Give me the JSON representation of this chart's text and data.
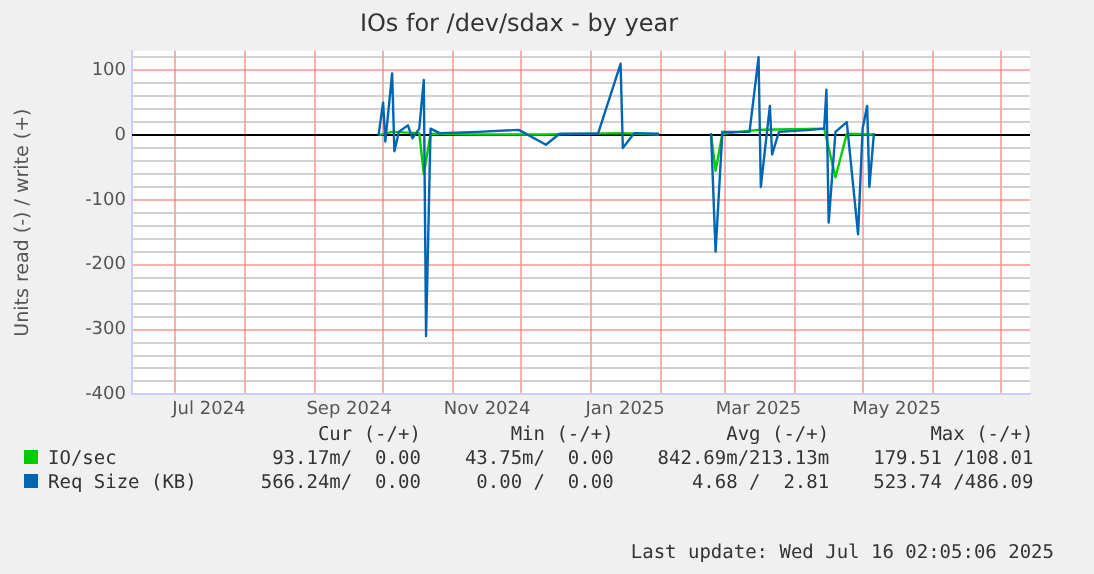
{
  "chart_data": {
    "type": "line",
    "title": "IOs for /dev/sdax - by year",
    "ylabel": "Units read (-) / write (+)",
    "xlim": [
      "2024-06-12",
      "2025-07-14"
    ],
    "xticks": [
      {
        "value": "2024-07-01",
        "label": null
      },
      {
        "value": "2024-07-16",
        "label": "Jul 2024"
      },
      {
        "value": "2024-08-01",
        "label": null
      },
      {
        "value": "2024-09-01",
        "label": null
      },
      {
        "value": "2024-09-16",
        "label": "Sep 2024"
      },
      {
        "value": "2024-10-01",
        "label": null
      },
      {
        "value": "2024-11-01",
        "label": null
      },
      {
        "value": "2024-11-16",
        "label": "Nov 2024"
      },
      {
        "value": "2024-12-01",
        "label": null
      },
      {
        "value": "2025-01-01",
        "label": null
      },
      {
        "value": "2025-01-16",
        "label": "Jan 2025"
      },
      {
        "value": "2025-02-01",
        "label": null
      },
      {
        "value": "2025-03-01",
        "label": null
      },
      {
        "value": "2025-03-16",
        "label": "Mar 2025"
      },
      {
        "value": "2025-04-01",
        "label": null
      },
      {
        "value": "2025-05-01",
        "label": null
      },
      {
        "value": "2025-05-16",
        "label": "May 2025"
      },
      {
        "value": "2025-06-01",
        "label": null
      },
      {
        "value": "2025-07-01",
        "label": null
      }
    ],
    "ylim": [
      -400,
      130
    ],
    "yticks": [
      -400,
      {
        "value": -380,
        "label": null
      },
      {
        "value": -360,
        "label": null
      },
      {
        "value": -340,
        "label": null
      },
      {
        "value": -320,
        "label": null
      },
      -300,
      {
        "value": -280,
        "label": null
      },
      {
        "value": -260,
        "label": null
      },
      {
        "value": -240,
        "label": null
      },
      {
        "value": -220,
        "label": null
      },
      -200,
      {
        "value": -180,
        "label": null
      },
      {
        "value": -160,
        "label": null
      },
      {
        "value": -140,
        "label": null
      },
      {
        "value": -120,
        "label": null
      },
      -100,
      {
        "value": -80,
        "label": null
      },
      {
        "value": -60,
        "label": null
      },
      {
        "value": -40,
        "label": null
      },
      {
        "value": -20,
        "label": null
      },
      0,
      {
        "value": 20,
        "label": null
      },
      {
        "value": 40,
        "label": null
      },
      {
        "value": 60,
        "label": null
      },
      {
        "value": 80,
        "label": null
      },
      100,
      {
        "value": 120,
        "label": null
      }
    ],
    "grid": true,
    "legend": "bottom left",
    "marker": "none",
    "line_style": "solid",
    "ref_lines": [
      {
        "axis": "y",
        "value": 0,
        "color": "#000000"
      }
    ],
    "series": [
      {
        "name": "Req Size (KB)",
        "color": "#0066b3",
        "x": [
          "2024-09-29",
          "2024-10-01",
          "2024-10-02",
          "2024-10-05",
          "2024-10-06",
          "2024-10-08",
          "2024-10-12",
          "2024-10-14",
          "2024-10-17",
          "2024-10-19",
          "2024-10-20",
          "2024-10-22",
          "2024-10-26",
          "2024-11-12",
          "2024-11-30",
          "2024-12-12",
          "2024-12-18",
          "2025-01-04",
          "2025-01-14",
          "2025-01-15",
          "2025-01-20",
          "2025-01-31",
          "2025-02-10",
          "2025-02-23",
          "2025-02-25",
          "2025-02-28",
          "2025-03-12",
          "2025-03-16",
          "2025-03-17",
          "2025-03-21",
          "2025-03-22",
          "2025-03-25",
          "2025-04-08",
          "2025-04-14",
          "2025-04-15",
          "2025-04-16",
          "2025-04-19",
          "2025-04-24",
          "2025-04-29",
          "2025-05-01",
          "2025-05-03",
          "2025-05-04",
          "2025-05-06"
        ],
        "values": [
          0,
          50,
          -10,
          95,
          -25,
          5,
          15,
          -5,
          10,
          85,
          -310,
          10,
          3,
          5,
          8,
          -15,
          2,
          2,
          110,
          -20,
          3,
          2,
          null,
          3,
          -180,
          5,
          5,
          120,
          -80,
          45,
          -30,
          5,
          8,
          10,
          70,
          -135,
          5,
          20,
          -153,
          10,
          45,
          -80,
          3
        ]
      },
      {
        "name": "IO/sec",
        "color": "#00cc00",
        "x": [
          "2024-09-29",
          "2024-10-05",
          "2024-10-17",
          "2024-10-19",
          "2024-10-22",
          "2024-11-12",
          "2024-12-12",
          "2025-01-14",
          "2025-01-31",
          "2025-02-10",
          "2025-02-23",
          "2025-02-25",
          "2025-02-28",
          "2025-03-16",
          "2025-04-14",
          "2025-04-19",
          "2025-04-24",
          "2025-05-06"
        ],
        "values": [
          0,
          5,
          3,
          -60,
          2,
          1,
          1,
          3,
          1,
          null,
          1,
          -55,
          2,
          8,
          10,
          -65,
          2,
          1
        ]
      }
    ],
    "annotations": [
      "Cur (-/+)",
      "Min (-/+)",
      "Avg (-/+)",
      "Max (-/+)",
      "93.17m/  0.00",
      "43.75m/  0.00",
      "842.69m/213.13m",
      "179.51 /108.01",
      "566.24m/  0.00",
      "0.00 /  0.00",
      "4.68 /  2.81",
      "523.74 /486.09",
      "Last update: Wed Jul 16 02:05:06 2025"
    ]
  }
}
